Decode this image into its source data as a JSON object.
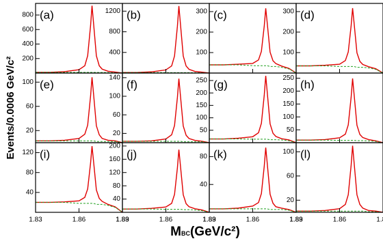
{
  "axis_labels": {
    "y": "Events/0.0006 GeV/c²",
    "x_main": "M",
    "x_sub": "BC",
    "x_unit": "(GeV/c²)"
  },
  "chart_data": [
    {
      "type": "line",
      "label": "(a)",
      "x": [
        1.83,
        1.84,
        1.85,
        1.86,
        1.864,
        1.866,
        1.868,
        1.869,
        1.87,
        1.872,
        1.874,
        1.876,
        1.88,
        1.885,
        1.89
      ],
      "xlim": [
        1.83,
        1.89
      ],
      "xticks": [
        1.83,
        1.86,
        1.89
      ],
      "ylim": [
        0,
        960
      ],
      "yticks": [
        200,
        400,
        600,
        800
      ],
      "series": [
        {
          "color": "#e00000",
          "values": [
            10,
            10,
            19,
            46,
            101,
            239,
            653,
            929,
            699,
            238,
            100,
            54,
            25,
            14,
            0
          ]
        },
        {
          "color": "#20a020",
          "dashed": true,
          "values": [
            10,
            10,
            10,
            9,
            9,
            9,
            9,
            9,
            9,
            8,
            8,
            8,
            7,
            5,
            0
          ]
        }
      ]
    },
    {
      "type": "line",
      "label": "(b)",
      "x": [
        1.83,
        1.84,
        1.85,
        1.86,
        1.864,
        1.866,
        1.868,
        1.869,
        1.87,
        1.872,
        1.874,
        1.876,
        1.88,
        1.885,
        1.89
      ],
      "xlim": [
        1.83,
        1.89
      ],
      "xticks": [
        1.83,
        1.86,
        1.89
      ],
      "ylim": [
        0,
        1350
      ],
      "yticks": [
        400,
        800,
        1200
      ],
      "series": [
        {
          "color": "#e00000",
          "values": [
            10,
            10,
            23,
            61,
            138,
            332,
            912,
            1299,
            977,
            331,
            137,
            73,
            33,
            18,
            0
          ]
        },
        {
          "color": "#20a020",
          "dashed": true,
          "values": [
            10,
            10,
            10,
            9,
            9,
            9,
            9,
            9,
            9,
            8,
            8,
            8,
            7,
            5,
            0
          ]
        }
      ]
    },
    {
      "type": "line",
      "label": "(c)",
      "x": [
        1.83,
        1.84,
        1.85,
        1.86,
        1.864,
        1.866,
        1.868,
        1.869,
        1.87,
        1.872,
        1.874,
        1.876,
        1.88,
        1.885,
        1.89
      ],
      "xlim": [
        1.83,
        1.89
      ],
      "xticks": [
        1.83,
        1.86,
        1.89
      ],
      "ylim": [
        0,
        340
      ],
      "yticks": [
        100,
        200,
        300
      ],
      "series": [
        {
          "color": "#e00000",
          "values": [
            40,
            40,
            43,
            47,
            64,
            106,
            232,
            316,
            246,
            102,
            60,
            46,
            34,
            23,
            0
          ]
        },
        {
          "color": "#20a020",
          "dashed": true,
          "values": [
            40,
            40,
            40,
            36,
            36,
            36,
            36,
            36,
            36,
            32,
            32,
            32,
            28,
            20,
            0
          ]
        }
      ]
    },
    {
      "type": "line",
      "label": "(d)",
      "x": [
        1.83,
        1.84,
        1.85,
        1.86,
        1.864,
        1.866,
        1.868,
        1.869,
        1.87,
        1.872,
        1.874,
        1.876,
        1.88,
        1.885,
        1.89
      ],
      "xlim": [
        1.83,
        1.89
      ],
      "xticks": [
        1.83,
        1.86,
        1.89
      ],
      "ylim": [
        0,
        340
      ],
      "yticks": [
        100,
        200,
        300
      ],
      "series": [
        {
          "color": "#e00000",
          "values": [
            35,
            35,
            38,
            43,
            61,
            103,
            232,
            317,
            246,
            99,
            57,
            42,
            31,
            21,
            0
          ]
        },
        {
          "color": "#20a020",
          "dashed": true,
          "values": [
            35,
            35,
            35,
            32,
            32,
            32,
            32,
            32,
            32,
            28,
            28,
            28,
            25,
            18,
            0
          ]
        }
      ]
    },
    {
      "type": "line",
      "label": "(e)",
      "x": [
        1.83,
        1.84,
        1.85,
        1.86,
        1.864,
        1.866,
        1.868,
        1.869,
        1.87,
        1.872,
        1.874,
        1.876,
        1.88,
        1.885,
        1.89
      ],
      "xlim": [
        1.83,
        1.89
      ],
      "xticks": [
        1.83,
        1.86,
        1.89
      ],
      "ylim": [
        0,
        115
      ],
      "yticks": [
        20,
        60,
        100
      ],
      "series": [
        {
          "color": "#e00000",
          "values": [
            3,
            3,
            4,
            7,
            14,
            29,
            77,
            108,
            82,
            28,
            13,
            7,
            4,
            3,
            0
          ]
        },
        {
          "color": "#20a020",
          "dashed": true,
          "values": [
            3,
            3,
            3,
            3,
            3,
            3,
            3,
            3,
            3,
            2,
            2,
            2,
            2,
            2,
            0
          ]
        }
      ]
    },
    {
      "type": "line",
      "label": "(f)",
      "x": [
        1.83,
        1.84,
        1.85,
        1.86,
        1.864,
        1.866,
        1.868,
        1.869,
        1.87,
        1.872,
        1.874,
        1.876,
        1.88,
        1.885,
        1.89
      ],
      "xlim": [
        1.83,
        1.89
      ],
      "xticks": [
        1.83,
        1.86,
        1.89
      ],
      "ylim": [
        0,
        150
      ],
      "yticks": [
        20,
        60,
        100,
        140
      ],
      "series": [
        {
          "color": "#e00000",
          "values": [
            3,
            3,
            4,
            8,
            17,
            37,
            98,
            138,
            104,
            36,
            16,
            9,
            5,
            3,
            0
          ]
        },
        {
          "color": "#20a020",
          "dashed": true,
          "values": [
            3,
            3,
            3,
            3,
            3,
            3,
            3,
            3,
            3,
            2,
            2,
            2,
            2,
            2,
            0
          ]
        }
      ]
    },
    {
      "type": "line",
      "label": "(g)",
      "x": [
        1.83,
        1.84,
        1.85,
        1.86,
        1.864,
        1.866,
        1.868,
        1.869,
        1.87,
        1.872,
        1.874,
        1.876,
        1.88,
        1.885,
        1.89
      ],
      "xlim": [
        1.83,
        1.89
      ],
      "xticks": [
        1.83,
        1.86,
        1.89
      ],
      "ylim": [
        0,
        280
      ],
      "yticks": [
        50,
        100,
        150,
        200,
        250
      ],
      "series": [
        {
          "color": "#e00000",
          "values": [
            15,
            15,
            18,
            24,
            40,
            78,
            193,
            269,
            205,
            76,
            38,
            25,
            16,
            11,
            0
          ]
        },
        {
          "color": "#20a020",
          "dashed": true,
          "values": [
            15,
            15,
            15,
            14,
            14,
            14,
            14,
            14,
            14,
            12,
            12,
            12,
            11,
            8,
            0
          ]
        }
      ]
    },
    {
      "type": "line",
      "label": "(h)",
      "x": [
        1.83,
        1.84,
        1.85,
        1.86,
        1.864,
        1.866,
        1.868,
        1.869,
        1.87,
        1.872,
        1.874,
        1.876,
        1.88,
        1.885,
        1.89
      ],
      "xlim": [
        1.83,
        1.89
      ],
      "xticks": [
        1.83,
        1.86,
        1.89
      ],
      "ylim": [
        0,
        270
      ],
      "yticks": [
        50,
        100,
        150,
        200,
        250
      ],
      "series": [
        {
          "color": "#e00000",
          "values": [
            10,
            10,
            12,
            19,
            33,
            69,
            177,
            249,
            189,
            68,
            32,
            20,
            12,
            7,
            0
          ]
        },
        {
          "color": "#20a020",
          "dashed": true,
          "values": [
            10,
            10,
            10,
            9,
            9,
            9,
            9,
            9,
            9,
            8,
            8,
            8,
            7,
            5,
            0
          ]
        }
      ]
    },
    {
      "type": "line",
      "label": "(i)",
      "x": [
        1.83,
        1.84,
        1.85,
        1.86,
        1.864,
        1.866,
        1.868,
        1.869,
        1.87,
        1.872,
        1.874,
        1.876,
        1.88,
        1.885,
        1.89
      ],
      "xlim": [
        1.83,
        1.89
      ],
      "xticks": [
        1.83,
        1.86,
        1.89
      ],
      "ylim": [
        0,
        140
      ],
      "yticks": [
        40,
        80,
        120
      ],
      "series": [
        {
          "color": "#e00000",
          "values": [
            20,
            20,
            21,
            23,
            30,
            47,
            99,
            133,
            104,
            45,
            28,
            22,
            16,
            11,
            0
          ]
        },
        {
          "color": "#20a020",
          "dashed": true,
          "values": [
            20,
            20,
            20,
            18,
            18,
            18,
            18,
            18,
            18,
            16,
            16,
            16,
            14,
            10,
            0
          ]
        }
      ]
    },
    {
      "type": "line",
      "label": "(j)",
      "x": [
        1.83,
        1.84,
        1.85,
        1.86,
        1.864,
        1.866,
        1.868,
        1.869,
        1.87,
        1.872,
        1.874,
        1.876,
        1.88,
        1.885,
        1.89
      ],
      "xlim": [
        1.83,
        1.89
      ],
      "xticks": [
        1.83,
        1.86,
        1.89
      ],
      "ylim": [
        0,
        210
      ],
      "yticks": [
        40,
        80,
        120,
        160,
        200
      ],
      "series": [
        {
          "color": "#e00000",
          "values": [
            10,
            10,
            12,
            16,
            27,
            54,
            135,
            189,
            144,
            53,
            26,
            17,
            11,
            7,
            0
          ]
        },
        {
          "color": "#20a020",
          "dashed": true,
          "values": [
            10,
            10,
            10,
            9,
            9,
            9,
            9,
            9,
            9,
            8,
            8,
            8,
            7,
            5,
            0
          ]
        }
      ]
    },
    {
      "type": "line",
      "label": "(k)",
      "x": [
        1.83,
        1.84,
        1.85,
        1.86,
        1.864,
        1.866,
        1.868,
        1.869,
        1.87,
        1.872,
        1.874,
        1.876,
        1.88,
        1.885,
        1.89
      ],
      "xlim": [
        1.83,
        1.89
      ],
      "xticks": [
        1.83,
        1.86,
        1.89
      ],
      "ylim": [
        0,
        100
      ],
      "yticks": [
        40,
        80
      ],
      "series": [
        {
          "color": "#e00000",
          "values": [
            5,
            5,
            6,
            9,
            14,
            27,
            67,
            93,
            71,
            26,
            13,
            8,
            6,
            4,
            0
          ]
        },
        {
          "color": "#20a020",
          "dashed": true,
          "values": [
            5,
            5,
            5,
            5,
            5,
            5,
            5,
            5,
            5,
            4,
            4,
            4,
            4,
            3,
            0
          ]
        }
      ]
    },
    {
      "type": "line",
      "label": "(l)",
      "x": [
        1.83,
        1.84,
        1.85,
        1.86,
        1.864,
        1.866,
        1.868,
        1.869,
        1.87,
        1.872,
        1.874,
        1.876,
        1.88,
        1.885,
        1.89
      ],
      "xlim": [
        1.83,
        1.89
      ],
      "xticks": [
        1.83,
        1.86,
        1.89
      ],
      "ylim": [
        0,
        115
      ],
      "yticks": [
        20,
        60,
        100
      ],
      "series": [
        {
          "color": "#e00000",
          "values": [
            2,
            2,
            3,
            6,
            13,
            29,
            78,
            110,
            83,
            29,
            13,
            7,
            3,
            2,
            0
          ]
        },
        {
          "color": "#20a020",
          "dashed": true,
          "values": [
            2,
            2,
            2,
            2,
            2,
            2,
            2,
            2,
            2,
            2,
            2,
            2,
            1,
            1,
            0
          ]
        }
      ]
    }
  ]
}
